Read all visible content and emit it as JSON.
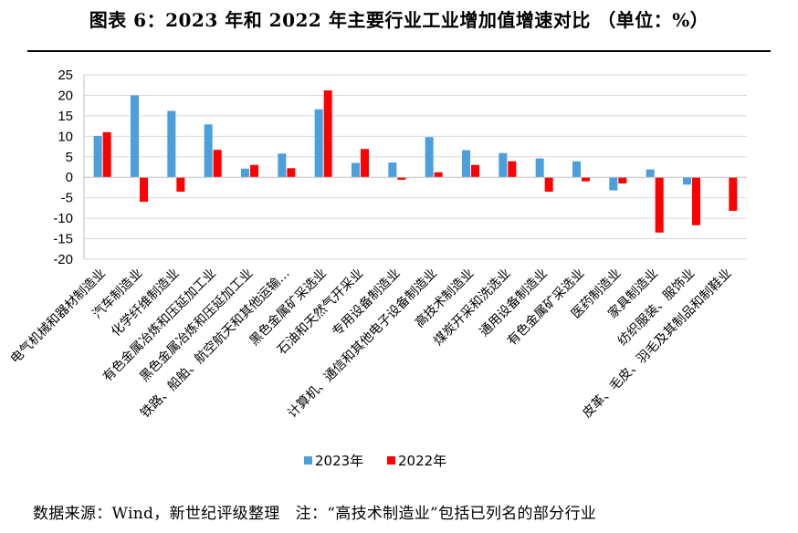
{
  "title": "图表 6：2023 年和 2022 年主要行业工业增加值增速对比 （单位：%）",
  "footer": {
    "source": "数据来源：Wind，新世纪评级整理",
    "note": "注：“高技术制造业”包括已列名的部分行业"
  },
  "colors": {
    "series_2023": "#4a9fdc",
    "series_2022": "#ff0000",
    "grid": "#d9d9d9",
    "axis": "#bfbfbf"
  },
  "chart_data": {
    "type": "bar",
    "categories": [
      "电气机械和器材制造业",
      "汽车制造业",
      "化学纤维制造业",
      "有色金属冶炼和压延加工业",
      "黑色金属冶炼和压延加工业",
      "铁路、船舶、航空航天和其他运输…",
      "黑色金属矿采选业",
      "石油和天然气开采业",
      "专用设备制造业",
      "计算机、通信和其他电子设备制造业",
      "高技术制造业",
      "煤炭开采和洗选业",
      "通用设备制造业",
      "有色金属矿采选业",
      "医药制造业",
      "家具制造业",
      "纺织服装、服饰业",
      "皮革、毛皮、羽毛及其制品和制鞋业"
    ],
    "series": [
      {
        "name": "2023年",
        "values": [
          10.1,
          20.0,
          16.2,
          12.9,
          2.1,
          5.8,
          16.6,
          3.5,
          3.6,
          9.8,
          6.6,
          5.9,
          4.6,
          3.9,
          -3.2,
          1.9,
          -1.8,
          0.0
        ]
      },
      {
        "name": "2022年",
        "values": [
          11.0,
          -6.0,
          -3.5,
          6.7,
          3.0,
          2.2,
          21.2,
          6.9,
          -0.6,
          1.2,
          3.0,
          3.9,
          -3.5,
          -1.0,
          -1.5,
          -13.5,
          -11.7,
          -8.2
        ]
      }
    ],
    "ylim": [
      -20,
      25
    ],
    "yticks": [
      -20,
      -15,
      -10,
      -5,
      0,
      5,
      10,
      15,
      20,
      25
    ],
    "grid": true,
    "legend": "bottom"
  }
}
